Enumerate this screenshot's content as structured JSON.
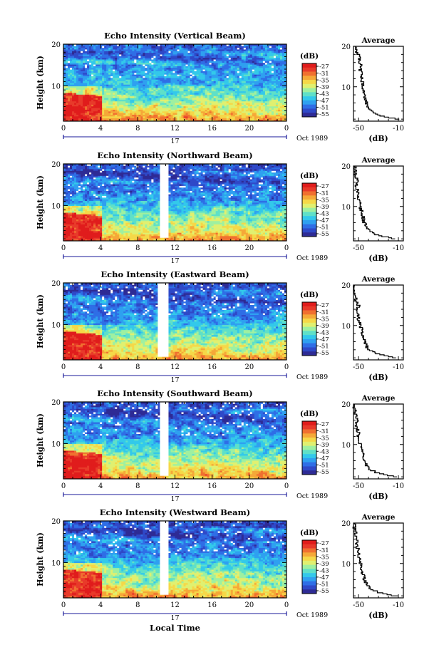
{
  "colors": {
    "scale": [
      "#2e2b95",
      "#2f49c8",
      "#2f6ee6",
      "#2fa0f0",
      "#33c9ea",
      "#5fe0c8",
      "#9ff0a0",
      "#e0f070",
      "#f5d848",
      "#f5a838",
      "#f07030",
      "#e83a2a",
      "#e01c1c"
    ],
    "axis": "#000000",
    "time_marker": "#1a1a9a"
  },
  "chart_data": [
    {
      "type": "heatmap",
      "title": "Echo Intensity (Vertical Beam)",
      "ylabel": "Height (km)",
      "xlabel": "",
      "x_ticks": [
        "0",
        "4",
        "8",
        "12",
        "16",
        "20",
        "0"
      ],
      "y_ticks": [
        "20",
        "10"
      ],
      "xlim": [
        0,
        24
      ],
      "ylim": [
        1.5,
        20
      ],
      "date_marker": "17",
      "date_label": "Oct 1989",
      "colorbar": {
        "unit": "(dB)",
        "labels": [
          "-27",
          "-31",
          "-35",
          "-39",
          "-43",
          "-47",
          "-51",
          "-55"
        ]
      },
      "gap": null,
      "profile": {
        "title": "Average",
        "xlabel": "(dB)",
        "x_ticks": [
          "-50",
          "-10"
        ],
        "y_ticks": [
          "20",
          "10"
        ],
        "xlim": [
          -55,
          -5
        ],
        "ylim": [
          1.5,
          20
        ],
        "height": [
          2,
          3,
          4,
          5,
          6,
          7,
          8,
          9,
          10,
          11,
          12,
          13,
          14,
          15,
          16,
          17,
          18,
          19,
          20
        ],
        "db": [
          -10,
          -28,
          -37,
          -40,
          -42,
          -43,
          -44,
          -45,
          -46,
          -46,
          -47,
          -47,
          -48,
          -48,
          -48,
          -49,
          -50,
          -52,
          -53
        ]
      }
    },
    {
      "type": "heatmap",
      "title": "Echo Intensity (Northward Beam)",
      "ylabel": "Height (km)",
      "xlabel": "",
      "x_ticks": [
        "0",
        "4",
        "8",
        "12",
        "16",
        "20",
        "0"
      ],
      "y_ticks": [
        "20",
        "10"
      ],
      "xlim": [
        0,
        24
      ],
      "ylim": [
        1.5,
        20
      ],
      "date_marker": "17",
      "date_label": "Oct 1989",
      "colorbar": {
        "unit": "(dB)",
        "labels": [
          "-27",
          "-31",
          "-35",
          "-39",
          "-43",
          "-47",
          "-51",
          "-55"
        ]
      },
      "gap": [
        10.3,
        11.2
      ],
      "profile": {
        "title": "Average",
        "xlabel": "(dB)",
        "x_ticks": [
          "-50",
          "-10"
        ],
        "y_ticks": [
          "20",
          "10"
        ],
        "xlim": [
          -55,
          -5
        ],
        "ylim": [
          1.5,
          20
        ],
        "height": [
          2,
          3,
          4,
          5,
          6,
          7,
          8,
          9,
          10,
          11,
          12,
          13,
          14,
          15,
          16,
          17,
          18,
          19,
          20
        ],
        "db": [
          -12,
          -30,
          -39,
          -42,
          -44,
          -45,
          -46,
          -47,
          -48,
          -49,
          -50,
          -50,
          -51,
          -52,
          -51,
          -52,
          -53,
          -53,
          -54
        ]
      }
    },
    {
      "type": "heatmap",
      "title": "Echo Intensity (Eastward Beam)",
      "ylabel": "Height (km)",
      "xlabel": "",
      "x_ticks": [
        "0",
        "4",
        "8",
        "12",
        "16",
        "20",
        "0"
      ],
      "y_ticks": [
        "20",
        "10"
      ],
      "xlim": [
        0,
        24
      ],
      "ylim": [
        1.5,
        20
      ],
      "date_marker": "17",
      "date_label": "Oct 1989",
      "colorbar": {
        "unit": "(dB)",
        "labels": [
          "-27",
          "-31",
          "-35",
          "-39",
          "-43",
          "-47",
          "-51",
          "-55"
        ]
      },
      "gap": [
        10.2,
        11.3
      ],
      "profile": {
        "title": "Average",
        "xlabel": "(dB)",
        "x_ticks": [
          "-50",
          "-10"
        ],
        "y_ticks": [
          "20",
          "10"
        ],
        "xlim": [
          -55,
          -5
        ],
        "ylim": [
          1.5,
          20
        ],
        "height": [
          2,
          3,
          4,
          5,
          6,
          7,
          8,
          9,
          10,
          11,
          12,
          13,
          14,
          15,
          16,
          17,
          18,
          19,
          20
        ],
        "db": [
          -12,
          -30,
          -39,
          -42,
          -44,
          -45,
          -46,
          -47,
          -48,
          -49,
          -50,
          -51,
          -52,
          -50,
          -52,
          -53,
          -53,
          -54,
          -54
        ]
      }
    },
    {
      "type": "heatmap",
      "title": "Echo Intensity (Southward Beam)",
      "ylabel": "Height (km)",
      "xlabel": "",
      "x_ticks": [
        "0",
        "4",
        "8",
        "12",
        "16",
        "20",
        "0"
      ],
      "y_ticks": [
        "20",
        "10"
      ],
      "xlim": [
        0,
        24
      ],
      "ylim": [
        1.5,
        20
      ],
      "date_marker": "17",
      "date_label": "Oct 1989",
      "colorbar": {
        "unit": "(dB)",
        "labels": [
          "-27",
          "-31",
          "-35",
          "-39",
          "-43",
          "-47",
          "-51",
          "-55"
        ]
      },
      "gap": [
        10.3,
        11.2
      ],
      "profile": {
        "title": "Average",
        "xlabel": "(dB)",
        "x_ticks": [
          "-50",
          "-10"
        ],
        "y_ticks": [
          "20",
          "10"
        ],
        "xlim": [
          -55,
          -5
        ],
        "ylim": [
          1.5,
          20
        ],
        "height": [
          2,
          3,
          4,
          5,
          6,
          7,
          8,
          9,
          10,
          11,
          12,
          13,
          14,
          15,
          16,
          17,
          18,
          19,
          20
        ],
        "db": [
          -12,
          -30,
          -39,
          -42,
          -44,
          -45,
          -46,
          -47,
          -48,
          -49,
          -50,
          -50,
          -51,
          -52,
          -51,
          -52,
          -53,
          -54,
          -54
        ]
      }
    },
    {
      "type": "heatmap",
      "title": "Echo Intensity (Westward Beam)",
      "ylabel": "Height (km)",
      "xlabel": "Local Time",
      "x_ticks": [
        "0",
        "4",
        "8",
        "12",
        "16",
        "20",
        "0"
      ],
      "y_ticks": [
        "20",
        "10"
      ],
      "xlim": [
        0,
        24
      ],
      "ylim": [
        1.5,
        20
      ],
      "date_marker": "17",
      "date_label": "Oct 1989",
      "colorbar": {
        "unit": "(dB)",
        "labels": [
          "-27",
          "-31",
          "-35",
          "-39",
          "-43",
          "-47",
          "-51",
          "-55"
        ]
      },
      "gap": [
        10.4,
        11.3
      ],
      "profile": {
        "title": "Average",
        "xlabel": "(dB)",
        "x_ticks": [
          "-50",
          "-10"
        ],
        "y_ticks": [
          "20",
          "10"
        ],
        "xlim": [
          -55,
          -5
        ],
        "ylim": [
          1.5,
          20
        ],
        "height": [
          2,
          3,
          4,
          5,
          6,
          7,
          8,
          9,
          10,
          11,
          12,
          13,
          14,
          15,
          16,
          17,
          18,
          19,
          20
        ],
        "db": [
          -12,
          -30,
          -39,
          -42,
          -44,
          -45,
          -46,
          -47,
          -48,
          -49,
          -50,
          -50,
          -51,
          -52,
          -51,
          -52,
          -53,
          -54,
          -54
        ]
      }
    }
  ]
}
